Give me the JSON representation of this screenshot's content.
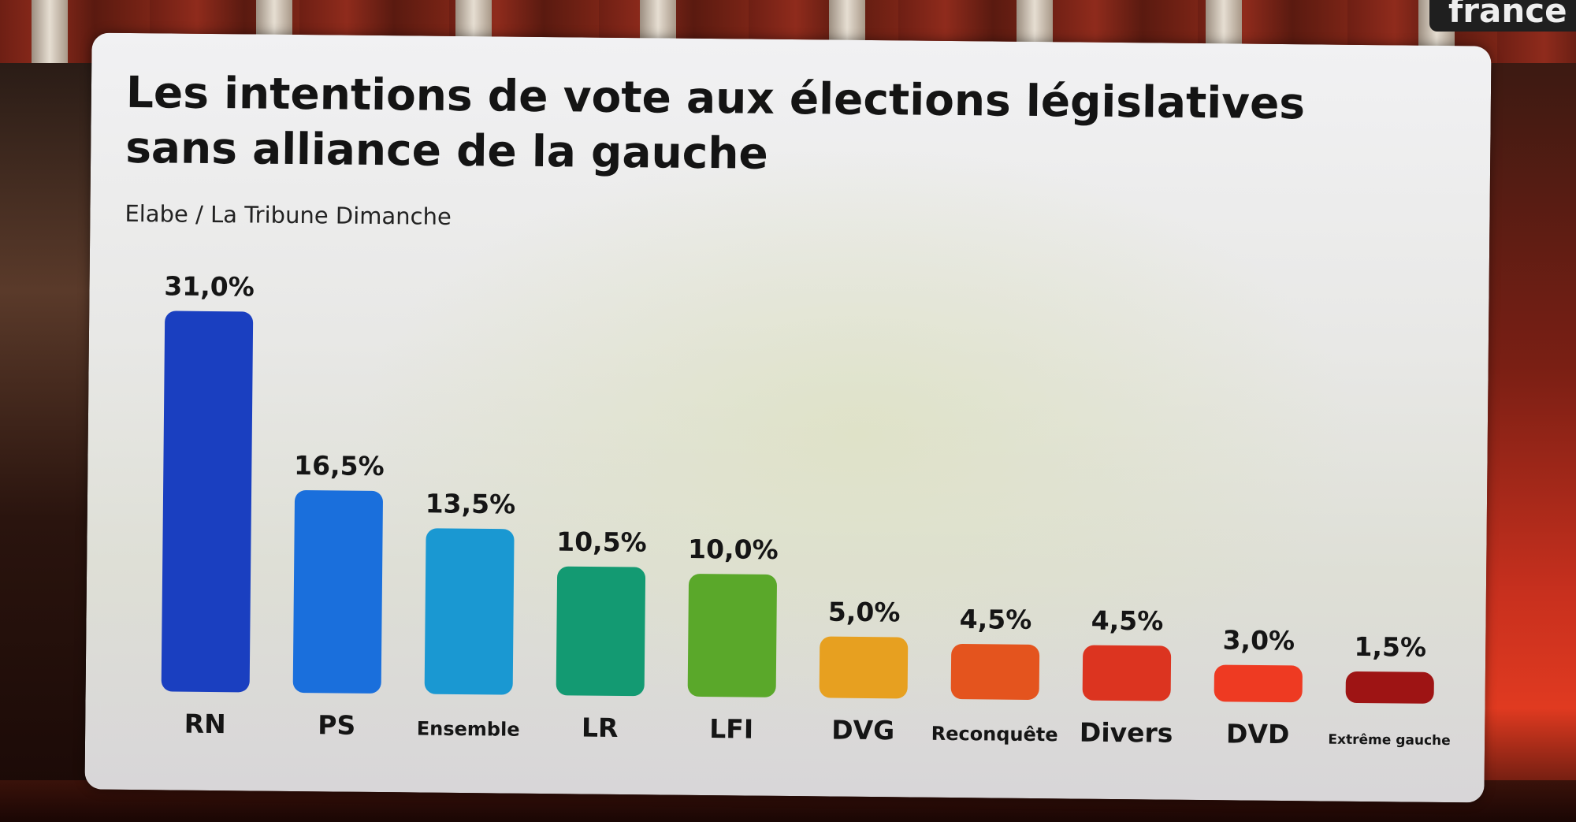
{
  "channel": {
    "logo_text": "france"
  },
  "chart_data": {
    "type": "bar",
    "title": "Les intentions de vote aux élections législatives sans alliance de la gauche",
    "subtitle": "Elabe / La Tribune Dimanche",
    "xlabel": "",
    "ylabel": "",
    "ylim": [
      0,
      31
    ],
    "grid": false,
    "categories": [
      "RN",
      "PS",
      "Ensemble",
      "LR",
      "LFI",
      "DVG",
      "Reconquête",
      "Divers",
      "DVD",
      "Extrême gauche"
    ],
    "values": [
      31.0,
      16.5,
      13.5,
      10.5,
      10.0,
      5.0,
      4.5,
      4.5,
      3.0,
      1.5
    ],
    "value_labels": [
      "31,0%",
      "16,5%",
      "13,5%",
      "10,5%",
      "10,0%",
      "5,0%",
      "4,5%",
      "4,5%",
      "3,0%",
      "1,5%"
    ],
    "colors": [
      "#1a3fc0",
      "#1a6fdc",
      "#1a98d2",
      "#139a72",
      "#5aa82a",
      "#e7a020",
      "#e4541e",
      "#dc3420",
      "#ee3a22",
      "#9e1414"
    ]
  }
}
